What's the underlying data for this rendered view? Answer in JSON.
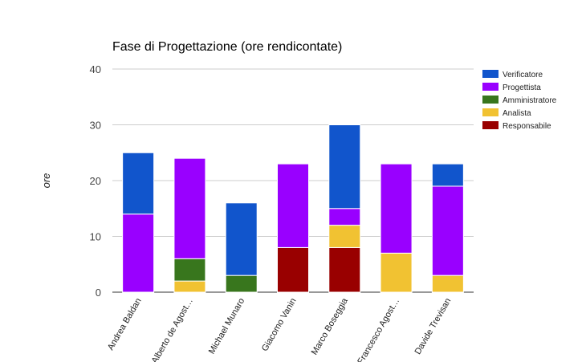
{
  "chart_data": {
    "type": "bar",
    "stacked": true,
    "title": "Fase di Progettazione (ore rendicontate)",
    "xlabel": "",
    "ylabel": "ore",
    "ylim": [
      0,
      40
    ],
    "yticks": [
      0,
      10,
      20,
      30,
      40
    ],
    "grid": true,
    "legend_position": "right",
    "categories": [
      "Andrea Baldan",
      "Alberto de Agost…",
      "Michael Munaro",
      "Giacomo Vanin",
      "Marco Boseggia",
      "Francesco Agost…",
      "Davide Trevisan"
    ],
    "series": [
      {
        "name": "Responsabile",
        "color": "#990000",
        "values": [
          0,
          0,
          0,
          8,
          8,
          0,
          0
        ]
      },
      {
        "name": "Analista",
        "color": "#f1c232",
        "values": [
          0,
          2,
          0,
          0,
          4,
          7,
          3
        ]
      },
      {
        "name": "Amministratore",
        "color": "#38761d",
        "values": [
          0,
          4,
          3,
          0,
          0,
          0,
          0
        ]
      },
      {
        "name": "Progettista",
        "color": "#9900ff",
        "values": [
          14,
          18,
          0,
          15,
          3,
          16,
          16
        ]
      },
      {
        "name": "Verificatore",
        "color": "#1155cc",
        "values": [
          11,
          0,
          13,
          0,
          15,
          0,
          4
        ]
      }
    ],
    "legend_order": [
      "Verificatore",
      "Progettista",
      "Amministratore",
      "Analista",
      "Responsabile"
    ]
  }
}
